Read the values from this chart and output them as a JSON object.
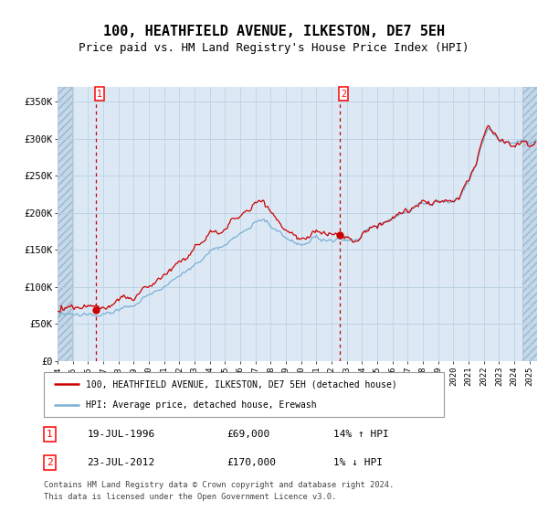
{
  "title1": "100, HEATHFIELD AVENUE, ILKESTON, DE7 5EH",
  "title2": "Price paid vs. HM Land Registry's House Price Index (HPI)",
  "title1_fontsize": 11,
  "title2_fontsize": 9,
  "ylim": [
    0,
    370000
  ],
  "yticks": [
    0,
    50000,
    100000,
    150000,
    200000,
    250000,
    300000,
    350000
  ],
  "ytick_labels": [
    "£0",
    "£50K",
    "£100K",
    "£150K",
    "£200K",
    "£250K",
    "£300K",
    "£350K"
  ],
  "xlim_start": 1994.0,
  "xlim_end": 2025.5,
  "xtick_years": [
    1994,
    1995,
    1996,
    1997,
    1998,
    1999,
    2000,
    2001,
    2002,
    2003,
    2004,
    2005,
    2006,
    2007,
    2008,
    2009,
    2010,
    2011,
    2012,
    2013,
    2014,
    2015,
    2016,
    2017,
    2018,
    2019,
    2020,
    2021,
    2022,
    2023,
    2024,
    2025
  ],
  "hpi_color": "#7bafd4",
  "price_color": "#cc0000",
  "bg_color": "#dce9f5",
  "grid_color": "#b8cfe0",
  "marker_color": "#cc0000",
  "vline_color": "#cc0000",
  "transaction1_date": 1996.54,
  "transaction1_price": 69000,
  "transaction2_date": 2012.55,
  "transaction2_price": 170000,
  "legend_line1": "100, HEATHFIELD AVENUE, ILKESTON, DE7 5EH (detached house)",
  "legend_line2": "HPI: Average price, detached house, Erewash",
  "annotation1_label": "1",
  "annotation2_label": "2",
  "table_row1": [
    "1",
    "19-JUL-1996",
    "£69,000",
    "14% ↑ HPI"
  ],
  "table_row2": [
    "2",
    "23-JUL-2012",
    "£170,000",
    "1% ↓ HPI"
  ],
  "footnote": "Contains HM Land Registry data © Crown copyright and database right 2024.\nThis data is licensed under the Open Government Licence v3.0.",
  "font_family": "monospace"
}
